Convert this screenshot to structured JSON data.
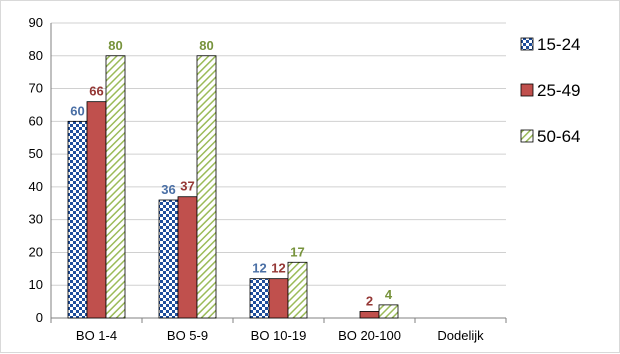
{
  "chart_data": {
    "type": "bar",
    "categories": [
      "BO 1-4",
      "BO 5-9",
      "BO 10-19",
      "BO 20-100",
      "Dodelijk"
    ],
    "series": [
      {
        "name": "15-24",
        "values": [
          60,
          36,
          12,
          null,
          null
        ],
        "pattern": "checker",
        "color": "#1f4e9c",
        "label_color": "#4a6fa5"
      },
      {
        "name": "25-49",
        "values": [
          66,
          37,
          12,
          2,
          null
        ],
        "pattern": "solid",
        "color": "#c0504d",
        "label_color": "#953735"
      },
      {
        "name": "50-64",
        "values": [
          80,
          80,
          17,
          4,
          null
        ],
        "pattern": "diagonal",
        "color": "#9bbb59",
        "label_color": "#77933c"
      }
    ],
    "y_ticks": [
      "0",
      "10",
      "20",
      "30",
      "40",
      "50",
      "60",
      "70",
      "80",
      "90"
    ],
    "ylim": [
      0,
      90
    ],
    "grid": true,
    "legend_position": "right",
    "title": "",
    "xlabel": "",
    "ylabel": ""
  }
}
